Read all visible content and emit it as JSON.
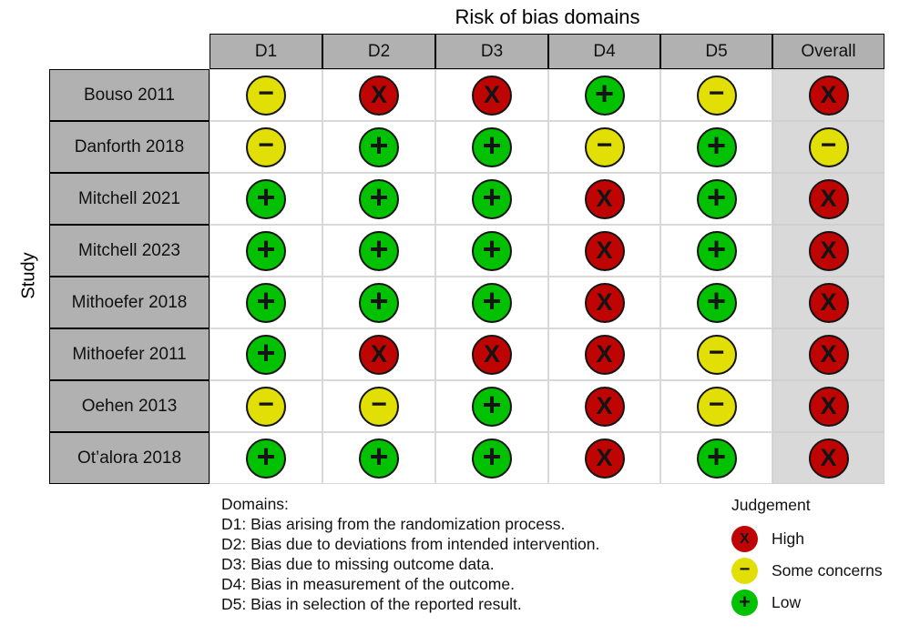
{
  "title": "Risk of bias domains",
  "y_axis_label": "Study",
  "table": {
    "columns": [
      "D1",
      "D2",
      "D3",
      "D4",
      "D5",
      "Overall"
    ],
    "rows": [
      {
        "study": "Bouso 2011",
        "judgements": [
          "some",
          "high",
          "high",
          "low",
          "some",
          "high"
        ]
      },
      {
        "study": "Danforth 2018",
        "judgements": [
          "some",
          "low",
          "low",
          "some",
          "low",
          "some"
        ]
      },
      {
        "study": "Mitchell 2021",
        "judgements": [
          "low",
          "low",
          "low",
          "high",
          "low",
          "high"
        ]
      },
      {
        "study": "Mitchell 2023",
        "judgements": [
          "low",
          "low",
          "low",
          "high",
          "low",
          "high"
        ]
      },
      {
        "study": "Mithoefer 2018",
        "judgements": [
          "low",
          "low",
          "low",
          "high",
          "low",
          "high"
        ]
      },
      {
        "study": "Mithoefer 2011",
        "judgements": [
          "low",
          "high",
          "high",
          "high",
          "some",
          "high"
        ]
      },
      {
        "study": "Oehen 2013",
        "judgements": [
          "some",
          "some",
          "low",
          "high",
          "some",
          "high"
        ]
      },
      {
        "study": "Ot’alora 2018",
        "judgements": [
          "low",
          "low",
          "low",
          "high",
          "low",
          "high"
        ]
      }
    ]
  },
  "judgements": {
    "high": {
      "label": "High",
      "symbol": "X",
      "color": "#BF0404"
    },
    "some": {
      "label": "Some concerns",
      "symbol": "−",
      "color": "#E2DF07"
    },
    "low": {
      "label": "Low",
      "symbol": "+",
      "color": "#02C100"
    }
  },
  "footnote": {
    "heading": "Domains:",
    "lines": [
      "D1: Bias arising from the randomization process.",
      "D2: Bias due to deviations from intended intervention.",
      "D3: Bias due to missing outcome data.",
      "D4: Bias in measurement of the outcome.",
      "D5: Bias in selection of the reported result."
    ]
  },
  "legend": {
    "title": "Judgement",
    "items": [
      {
        "key": "high",
        "label": "High"
      },
      {
        "key": "some",
        "label": "Some concerns"
      },
      {
        "key": "low",
        "label": "Low"
      }
    ]
  },
  "colors": {
    "header_bg": "#B1B1B1",
    "row_label_bg": "#B1B1B1",
    "overall_bg": "#D9D9D9",
    "grid_line": "#D9D9D9",
    "high": "#BF0404",
    "some": "#E2DF07",
    "low": "#02C100"
  },
  "chart_data": {
    "type": "heatmap",
    "title": "Risk of bias domains",
    "xlabel": "",
    "ylabel": "Study",
    "columns": [
      "D1",
      "D2",
      "D3",
      "D4",
      "D5",
      "Overall"
    ],
    "rows": [
      "Bouso 2011",
      "Danforth 2018",
      "Mitchell 2021",
      "Mitchell 2023",
      "Mithoefer 2018",
      "Mithoefer 2011",
      "Oehen 2013",
      "Ot’alora 2018"
    ],
    "values": [
      [
        "Some concerns",
        "High",
        "High",
        "Low",
        "Some concerns",
        "High"
      ],
      [
        "Some concerns",
        "Low",
        "Low",
        "Some concerns",
        "Low",
        "Some concerns"
      ],
      [
        "Low",
        "Low",
        "Low",
        "High",
        "Low",
        "High"
      ],
      [
        "Low",
        "Low",
        "Low",
        "High",
        "Low",
        "High"
      ],
      [
        "Low",
        "Low",
        "Low",
        "High",
        "Low",
        "High"
      ],
      [
        "Low",
        "High",
        "High",
        "High",
        "Some concerns",
        "High"
      ],
      [
        "Some concerns",
        "Some concerns",
        "Low",
        "High",
        "Some concerns",
        "High"
      ],
      [
        "Low",
        "Low",
        "Low",
        "High",
        "Low",
        "High"
      ]
    ],
    "legend": [
      "High",
      "Some concerns",
      "Low"
    ],
    "legend_position": "bottom-right",
    "grid": true
  }
}
